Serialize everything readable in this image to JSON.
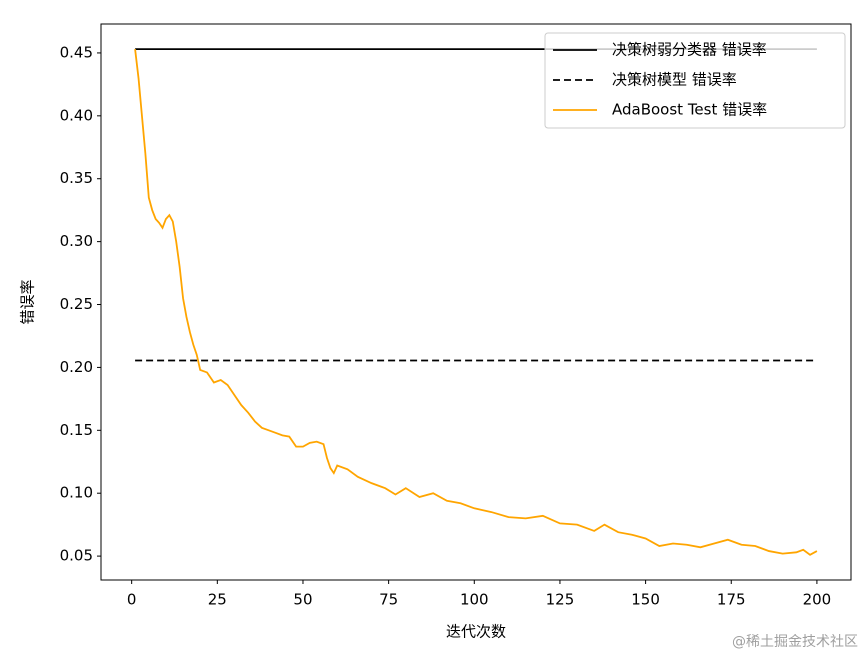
{
  "chart_data": {
    "type": "line",
    "x_label": "迭代次数",
    "y_label": "错误率",
    "xlim": [
      -8.95,
      209.95
    ],
    "xticks": [
      0,
      25,
      50,
      75,
      100,
      125,
      150,
      175,
      200
    ],
    "ylim": [
      0.031,
      0.473
    ],
    "yticks": [
      0.05,
      {
        "value": 0.1,
        "label": "0.10"
      },
      0.15,
      {
        "value": 0.2,
        "label": "0.20"
      },
      0.25,
      {
        "value": 0.3,
        "label": "0.30"
      },
      0.35,
      {
        "value": 0.4,
        "label": "0.40"
      },
      0.45
    ],
    "legend": "upper right",
    "series": [
      {
        "name": "决策树弱分类器 错误率",
        "color": "#000000",
        "linestyle": "solid",
        "x": [
          1,
          200
        ],
        "values": [
          0.453,
          0.453
        ]
      },
      {
        "name": "决策树模型 错误率",
        "color": "#000000",
        "linestyle": "dashed",
        "x": [
          1,
          200
        ],
        "values": [
          0.2055,
          0.2055
        ]
      },
      {
        "name": "AdaBoost Test 错误率",
        "color": "#ffa500",
        "linestyle": "solid",
        "x": [
          1,
          2,
          3,
          4,
          5,
          6,
          7,
          8,
          9,
          10,
          11,
          12,
          13,
          14,
          15,
          16,
          17,
          18,
          19,
          20,
          22,
          24,
          26,
          28,
          30,
          32,
          34,
          36,
          38,
          40,
          42,
          44,
          46,
          48,
          50,
          52,
          54,
          56,
          57,
          58,
          59,
          60,
          63,
          66,
          70,
          74,
          77,
          80,
          84,
          88,
          92,
          96,
          100,
          105,
          110,
          115,
          120,
          125,
          130,
          135,
          138,
          142,
          146,
          150,
          154,
          158,
          162,
          166,
          170,
          174,
          178,
          182,
          186,
          190,
          194,
          196,
          198,
          200
        ],
        "values": [
          0.453,
          0.43,
          0.4,
          0.37,
          0.335,
          0.325,
          0.318,
          0.315,
          0.311,
          0.318,
          0.321,
          0.316,
          0.3,
          0.28,
          0.255,
          0.24,
          0.228,
          0.218,
          0.21,
          0.198,
          0.196,
          0.188,
          0.19,
          0.186,
          0.178,
          0.17,
          0.164,
          0.157,
          0.152,
          0.15,
          0.148,
          0.146,
          0.145,
          0.137,
          0.137,
          0.14,
          0.141,
          0.139,
          0.128,
          0.12,
          0.116,
          0.122,
          0.119,
          0.113,
          0.108,
          0.104,
          0.099,
          0.104,
          0.097,
          0.1,
          0.094,
          0.092,
          0.088,
          0.085,
          0.081,
          0.08,
          0.082,
          0.076,
          0.075,
          0.07,
          0.075,
          0.069,
          0.067,
          0.064,
          0.058,
          0.06,
          0.059,
          0.057,
          0.06,
          0.063,
          0.059,
          0.058,
          0.054,
          0.052,
          0.053,
          0.055,
          0.051,
          0.054
        ]
      }
    ],
    "watermark": "@稀土掘金技术社区"
  }
}
